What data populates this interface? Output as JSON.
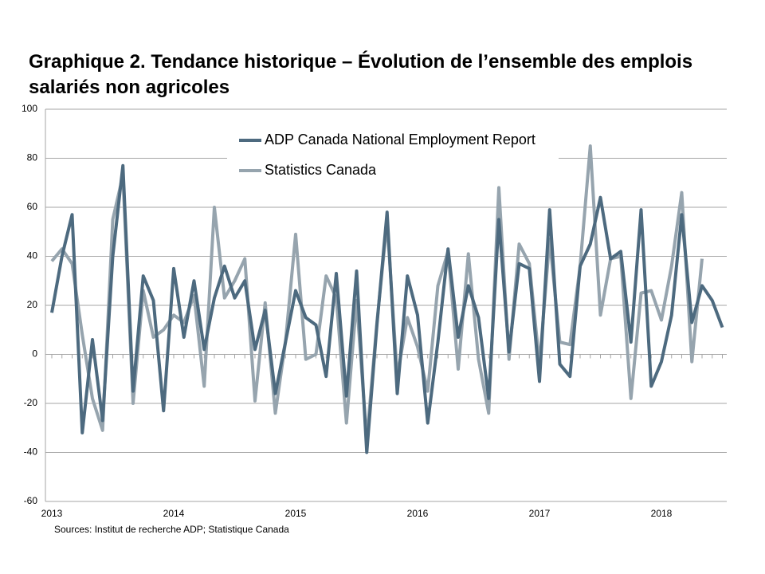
{
  "chart_data": {
    "type": "line",
    "title": "Graphique 2. Tendance historique – Évolution de l’ensemble des emplois salariés non agricoles",
    "source": "Sources: Institut de recherche ADP; Statistique Canada",
    "categories": [
      "2013",
      null,
      null,
      null,
      null,
      null,
      null,
      null,
      null,
      null,
      null,
      null,
      "2014",
      null,
      null,
      null,
      null,
      null,
      null,
      null,
      null,
      null,
      null,
      null,
      "2015",
      null,
      null,
      null,
      null,
      null,
      null,
      null,
      null,
      null,
      null,
      null,
      "2016",
      null,
      null,
      null,
      null,
      null,
      null,
      null,
      null,
      null,
      null,
      null,
      "2017",
      null,
      null,
      null,
      null,
      null,
      null,
      null,
      null,
      null,
      null,
      null,
      "2018",
      null,
      null,
      null,
      null,
      null,
      null
    ],
    "ylim": [
      -60,
      100
    ],
    "yticks": [
      -60,
      -40,
      -20,
      0,
      20,
      40,
      60,
      80,
      100
    ],
    "grid": true,
    "legend": "top",
    "series": [
      {
        "name": "ADP Canada National Employment Report",
        "color": "#4d6a7f",
        "values": [
          17,
          40,
          57,
          -32,
          6,
          -27,
          40,
          77,
          -15,
          32,
          22,
          -23,
          35,
          7,
          30,
          2,
          23,
          36,
          23,
          30,
          2,
          18,
          -16,
          5,
          26,
          15,
          12,
          -9,
          33,
          -17,
          34,
          -40,
          12,
          58,
          -16,
          32,
          16,
          -28,
          5,
          43,
          7,
          28,
          15,
          -18,
          55,
          1,
          37,
          35,
          -11,
          59,
          -4,
          -9,
          36,
          45,
          64,
          39,
          42,
          5,
          59,
          -13,
          -3,
          16,
          57,
          13,
          28,
          22,
          11
        ]
      },
      {
        "name": "Statistics Canada",
        "color": "#96a4ae",
        "values": [
          38,
          43,
          37,
          8,
          -18,
          -31,
          55,
          73,
          -20,
          26,
          7,
          10,
          16,
          13,
          24,
          -13,
          60,
          23,
          30,
          39,
          -19,
          21,
          -24,
          5,
          49,
          -2,
          0,
          32,
          23,
          -28,
          22,
          -35,
          13,
          54,
          -9,
          15,
          3,
          -15,
          28,
          42,
          -6,
          41,
          -2,
          -24,
          68,
          -2,
          45,
          37,
          -4,
          47,
          5,
          4,
          36,
          85,
          16,
          39,
          40,
          -18,
          25,
          26,
          14,
          36,
          66,
          -3,
          39,
          null,
          null
        ]
      }
    ]
  }
}
